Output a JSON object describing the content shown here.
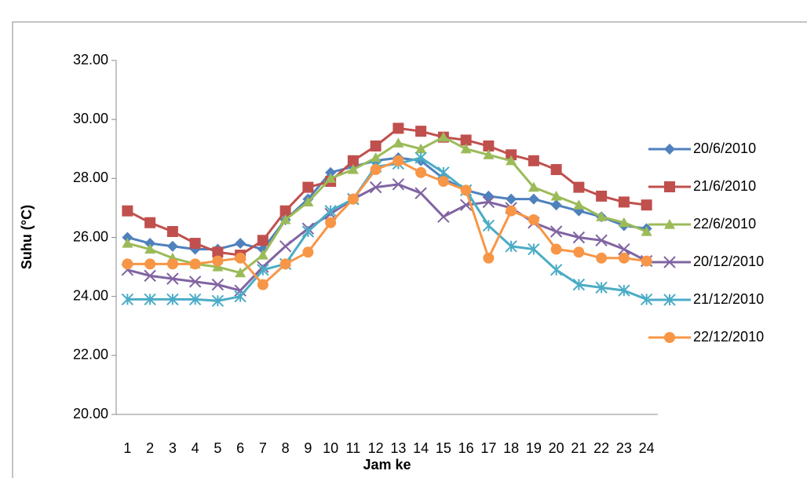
{
  "chart_data": {
    "type": "line",
    "x_label": "Jam ke",
    "y_label": "Suhu (°C)",
    "categories": [
      "1",
      "2",
      "3",
      "4",
      "5",
      "6",
      "7",
      "8",
      "9",
      "10",
      "11",
      "12",
      "13",
      "14",
      "15",
      "16",
      "17",
      "18",
      "19",
      "20",
      "21",
      "22",
      "23",
      "24"
    ],
    "ylim": [
      20,
      32
    ],
    "yticks": [
      {
        "value": 20,
        "label": "20.00"
      },
      {
        "value": 22,
        "label": "22.00"
      },
      {
        "value": 24,
        "label": "24.00"
      },
      {
        "value": 26,
        "label": "26.00"
      },
      {
        "value": 28,
        "label": "28.00"
      },
      {
        "value": 30,
        "label": "30.00"
      },
      {
        "value": 32,
        "label": "32.00"
      }
    ],
    "legend": "right",
    "series": [
      {
        "name": "20/6/2010",
        "color": "#4f81bd",
        "marker": "diamond",
        "values": [
          26.0,
          25.8,
          25.7,
          25.6,
          25.6,
          25.8,
          25.6,
          26.6,
          27.3,
          28.2,
          28.4,
          28.6,
          28.7,
          28.6,
          28.0,
          27.6,
          27.4,
          27.3,
          27.3,
          27.1,
          26.9,
          26.7,
          26.4,
          26.3
        ]
      },
      {
        "name": "21/6/2010",
        "color": "#c0504d",
        "marker": "square",
        "values": [
          26.9,
          26.5,
          26.2,
          25.8,
          25.5,
          25.4,
          25.9,
          26.9,
          27.7,
          27.9,
          28.6,
          29.1,
          29.7,
          29.6,
          29.4,
          29.3,
          29.1,
          28.8,
          28.6,
          28.3,
          27.7,
          27.4,
          27.2,
          27.1
        ]
      },
      {
        "name": "22/6/2010",
        "color": "#9bbb59",
        "marker": "triangle",
        "values": [
          25.8,
          25.6,
          25.3,
          25.1,
          25.0,
          24.8,
          25.4,
          26.6,
          27.2,
          28.0,
          28.3,
          28.7,
          29.2,
          29.0,
          29.4,
          29.0,
          28.8,
          28.6,
          27.7,
          27.4,
          27.1,
          26.7,
          26.5,
          26.2
        ]
      },
      {
        "name": "20/12/2010",
        "color": "#8064a2",
        "marker": "x",
        "values": [
          24.9,
          24.7,
          24.6,
          24.5,
          24.4,
          24.2,
          25.0,
          25.7,
          26.3,
          26.8,
          27.3,
          27.7,
          27.8,
          27.5,
          26.7,
          27.1,
          27.2,
          27.0,
          26.5,
          26.2,
          26.0,
          25.9,
          25.6,
          25.2
        ]
      },
      {
        "name": "21/12/2010",
        "color": "#4bacc6",
        "marker": "star",
        "values": [
          23.9,
          23.9,
          23.9,
          23.9,
          23.85,
          24.0,
          24.9,
          25.1,
          26.2,
          26.9,
          27.3,
          28.4,
          28.5,
          28.7,
          28.2,
          27.6,
          26.4,
          25.7,
          25.6,
          24.9,
          24.4,
          24.3,
          24.2,
          23.9
        ]
      },
      {
        "name": "22/12/2010",
        "color": "#f79646",
        "marker": "circle",
        "values": [
          25.1,
          25.1,
          25.1,
          25.1,
          25.2,
          25.3,
          24.4,
          25.1,
          25.5,
          26.5,
          27.3,
          28.3,
          28.6,
          28.2,
          27.9,
          27.6,
          25.3,
          26.9,
          26.6,
          25.6,
          25.5,
          25.3,
          25.3,
          25.2
        ]
      }
    ]
  }
}
